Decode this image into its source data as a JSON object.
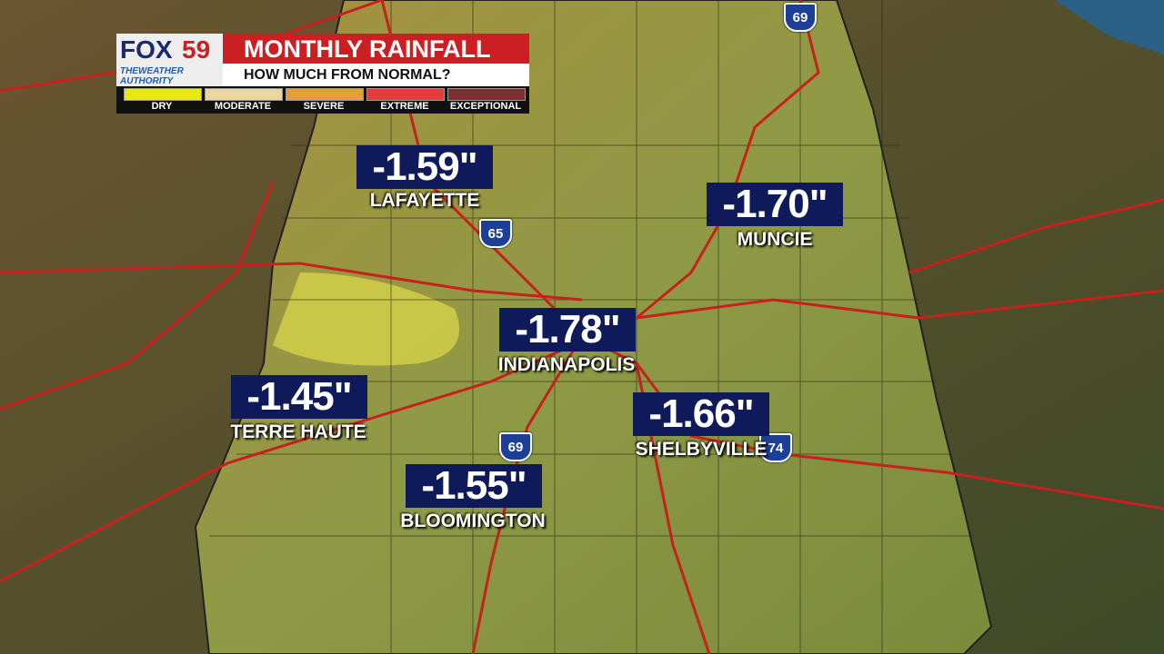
{
  "header": {
    "brand": "FOX",
    "channel": "59",
    "tagline": "THEWEATHER AUTHORITY",
    "title": "MONTHLY RAINFALL",
    "subtitle": "HOW MUCH FROM NORMAL?"
  },
  "legend": [
    "DRY",
    "MODERATE",
    "SEVERE",
    "EXTREME",
    "EXCEPTIONAL"
  ],
  "cities": [
    {
      "name": "LAFAYETTE",
      "value": "-1.59\""
    },
    {
      "name": "MUNCIE",
      "value": "-1.70\""
    },
    {
      "name": "INDIANAPOLIS",
      "value": "-1.78\""
    },
    {
      "name": "TERRE HAUTE",
      "value": "-1.45\""
    },
    {
      "name": "SHELBYVILLE",
      "value": "-1.66\""
    },
    {
      "name": "BLOOMINGTON",
      "value": "-1.55\""
    }
  ],
  "shields": [
    "69",
    "65",
    "69",
    "74"
  ]
}
